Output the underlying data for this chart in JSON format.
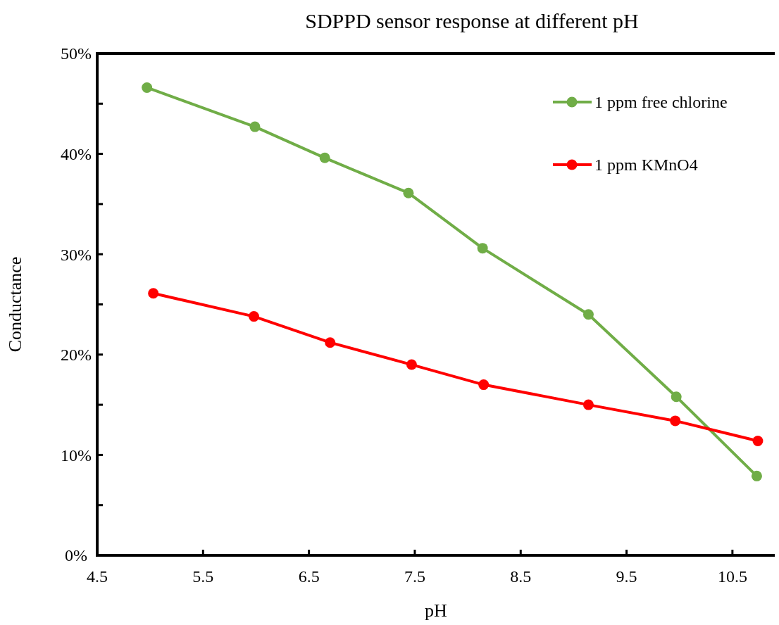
{
  "chart_data": {
    "type": "line",
    "title": "SDPPD sensor response at different pH",
    "xlabel": "pH",
    "ylabel": "Conductance",
    "series": [
      {
        "name": "1 ppm free chlorine",
        "color": "#70ad47",
        "x": [
          4.97,
          5.99,
          6.65,
          7.44,
          8.14,
          9.14,
          9.97,
          10.73
        ],
        "values": [
          46.6,
          42.7,
          39.6,
          36.1,
          30.6,
          24.0,
          15.8,
          7.9
        ]
      },
      {
        "name": "1 ppm KMnO4",
        "color": "#ff0000",
        "x": [
          5.03,
          5.98,
          6.7,
          7.47,
          8.15,
          9.14,
          9.96,
          10.74
        ],
        "values": [
          26.1,
          23.8,
          21.2,
          19.0,
          17.0,
          15.0,
          13.4,
          11.4
        ]
      }
    ],
    "xlim": [
      4.5,
      10.9
    ],
    "xticks": [
      4.5,
      5.5,
      6.5,
      7.5,
      8.5,
      9.5,
      10.5
    ],
    "ylim": [
      0,
      50
    ],
    "yticks": [
      {
        "value": 0,
        "label": "0%"
      },
      {
        "value": 5,
        "label": null
      },
      {
        "value": 10,
        "label": "10%"
      },
      {
        "value": 15,
        "label": null
      },
      {
        "value": 20,
        "label": "20%"
      },
      {
        "value": 25,
        "label": null
      },
      {
        "value": 30,
        "label": "30%"
      },
      {
        "value": 35,
        "label": null
      },
      {
        "value": 40,
        "label": "40%"
      },
      {
        "value": 45,
        "label": null
      },
      {
        "value": 50,
        "label": "50%"
      }
    ],
    "grid": false,
    "legend": "top right",
    "marker": "circle",
    "line_style": "solid"
  }
}
